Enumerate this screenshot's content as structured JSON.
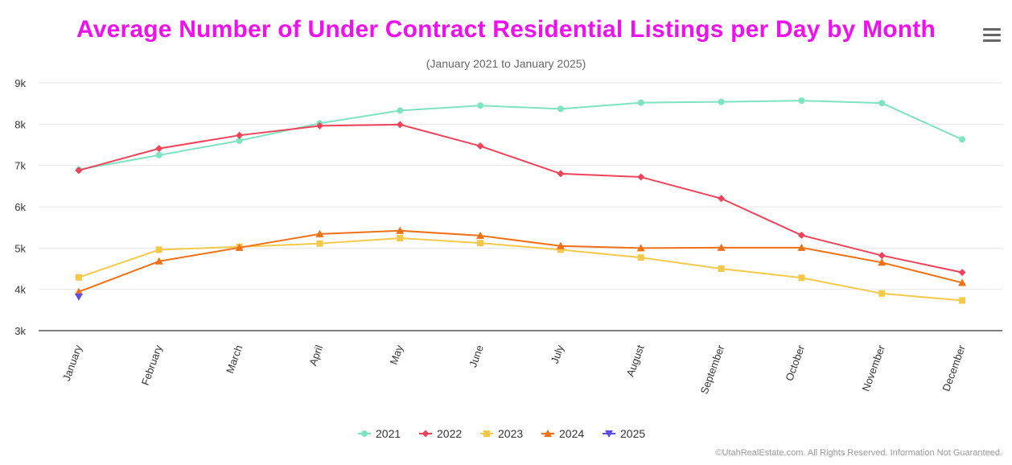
{
  "menu": {
    "icon": "hamburger-menu-icon"
  },
  "credits": "©UtahRealEstate.com. All Rights Reserved. Information Not Guaranteed.",
  "chart_data": {
    "type": "line",
    "title": "Average Number of Under Contract Residential Listings per Day by Month",
    "subtitle": "(January 2021 to January 2025)",
    "xlabel": "",
    "ylabel": "",
    "categories": [
      "January",
      "February",
      "March",
      "April",
      "May",
      "June",
      "July",
      "August",
      "September",
      "October",
      "November",
      "December"
    ],
    "ylim": [
      3000,
      9000
    ],
    "y_ticks": [
      3000,
      4000,
      5000,
      6000,
      7000,
      8000,
      9000
    ],
    "y_tick_labels": [
      "3k",
      "4k",
      "5k",
      "6k",
      "7k",
      "8k",
      "9k"
    ],
    "grid": true,
    "legend_position": "bottom-center",
    "series": [
      {
        "name": "2021",
        "color": "#7de3c1",
        "marker": "circle",
        "values": [
          6900,
          7250,
          7600,
          8020,
          8330,
          8450,
          8370,
          8520,
          8540,
          8570,
          8510,
          7630
        ]
      },
      {
        "name": "2022",
        "color": "#f0435a",
        "marker": "diamond",
        "values": [
          6880,
          7410,
          7730,
          7960,
          7990,
          7470,
          6800,
          6720,
          6200,
          5310,
          4820,
          4410
        ]
      },
      {
        "name": "2023",
        "color": "#f4c94a",
        "marker": "square",
        "values": [
          4290,
          4960,
          5030,
          5110,
          5240,
          5120,
          4960,
          4770,
          4500,
          4280,
          3900,
          3730
        ]
      },
      {
        "name": "2024",
        "color": "#f07015",
        "marker": "triangle",
        "values": [
          3940,
          4680,
          5010,
          5340,
          5420,
          5300,
          5050,
          5000,
          5010,
          5010,
          4650,
          4160
        ]
      },
      {
        "name": "2025",
        "color": "#5b4ee6",
        "marker": "triangle-down",
        "values": [
          3820,
          null,
          null,
          null,
          null,
          null,
          null,
          null,
          null,
          null,
          null,
          null
        ]
      }
    ]
  }
}
